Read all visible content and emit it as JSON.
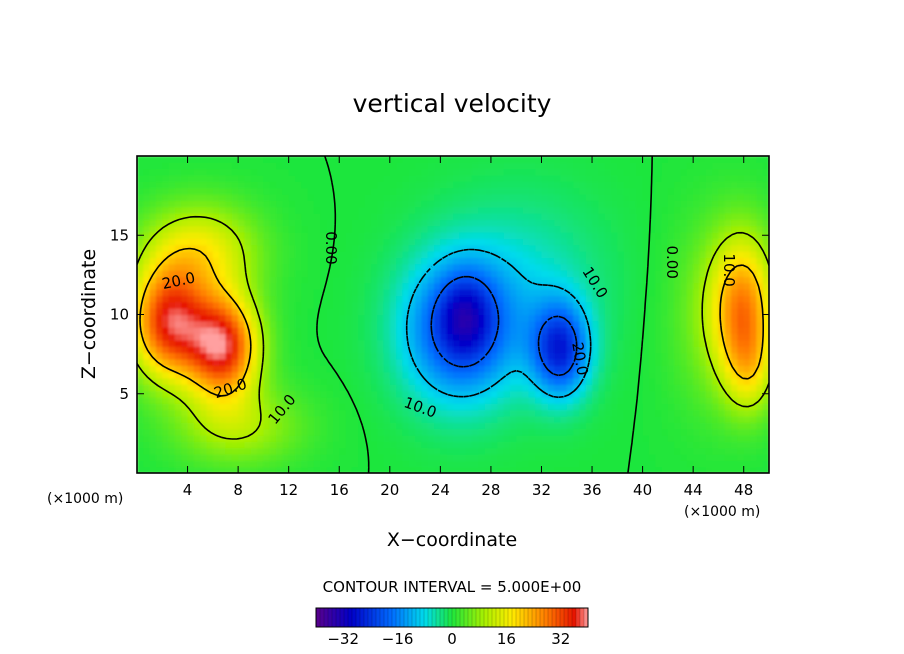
{
  "chart_data": {
    "type": "heatmap",
    "title": "vertical velocity",
    "xlabel": "X−coordinate",
    "ylabel": "Z−coordinate",
    "x_unit_left": "(×1000 m)",
    "x_unit_right": "(×1000 m)",
    "xlim": [
      0,
      50
    ],
    "ylim": [
      0,
      20
    ],
    "xticks": [
      4,
      8,
      12,
      16,
      20,
      24,
      28,
      32,
      36,
      40,
      44,
      48
    ],
    "yticks": [
      5,
      10,
      15
    ],
    "contour_interval_label": "CONTOUR INTERVAL = 5.000E+00",
    "colorbar": {
      "range": [
        -40,
        40
      ],
      "ticks": [
        -32,
        -16,
        0,
        16,
        32
      ],
      "tick_labels": [
        "−32",
        "−16",
        "0",
        "16",
        "32"
      ]
    },
    "contour_labels": [
      {
        "text": "20.0",
        "x": 3.3,
        "y": 12.1,
        "rotate": -12
      },
      {
        "text": "20.0",
        "x": 7.4,
        "y": 5.3,
        "rotate": -18
      },
      {
        "text": "10.0",
        "x": 11.5,
        "y": 4.0,
        "rotate": -50
      },
      {
        "text": "0.00",
        "x": 15.3,
        "y": 14.2,
        "rotate": 90
      },
      {
        "text": "10.0",
        "x": 22.4,
        "y": 4.1,
        "rotate": 20
      },
      {
        "text": "10.0",
        "x": 36.2,
        "y": 12.0,
        "rotate": 58
      },
      {
        "text": "20.0",
        "x": 35.0,
        "y": 7.2,
        "rotate": 80
      },
      {
        "text": "0.00",
        "x": 42.3,
        "y": 13.3,
        "rotate": 90
      },
      {
        "text": "10.0",
        "x": 46.8,
        "y": 12.8,
        "rotate": 90
      }
    ],
    "field_features": [
      {
        "x": 2.5,
        "y": 9.5,
        "sx": 3.0,
        "sy": 3.5,
        "amp": 34
      },
      {
        "x": 6.8,
        "y": 8.0,
        "sx": 2.8,
        "sy": 3.2,
        "amp": 36
      },
      {
        "x": 5.0,
        "y": 14.0,
        "sx": 4.5,
        "sy": 3.0,
        "amp": 16
      },
      {
        "x": 8.0,
        "y": 3.0,
        "sx": 5.0,
        "sy": 2.5,
        "amp": 10
      },
      {
        "x": 25.5,
        "y": 9.0,
        "sx": 4.5,
        "sy": 4.5,
        "amp": -22
      },
      {
        "x": 26.0,
        "y": 10.0,
        "sx": 2.0,
        "sy": 2.5,
        "amp": -10
      },
      {
        "x": 33.5,
        "y": 7.8,
        "sx": 2.3,
        "sy": 3.0,
        "amp": -24
      },
      {
        "x": 30.5,
        "y": 12.0,
        "sx": 6.5,
        "sy": 5.5,
        "amp": -6
      },
      {
        "x": 48.0,
        "y": 10.5,
        "sx": 2.5,
        "sy": 4.5,
        "amp": 24
      },
      {
        "x": 48.5,
        "y": 6.5,
        "sx": 2.0,
        "sy": 3.0,
        "amp": 10
      },
      {
        "x": 45.5,
        "y": 10.0,
        "sx": 3.5,
        "sy": 6.0,
        "amp": 6
      }
    ],
    "grid": false,
    "colormap": "rainbow"
  }
}
